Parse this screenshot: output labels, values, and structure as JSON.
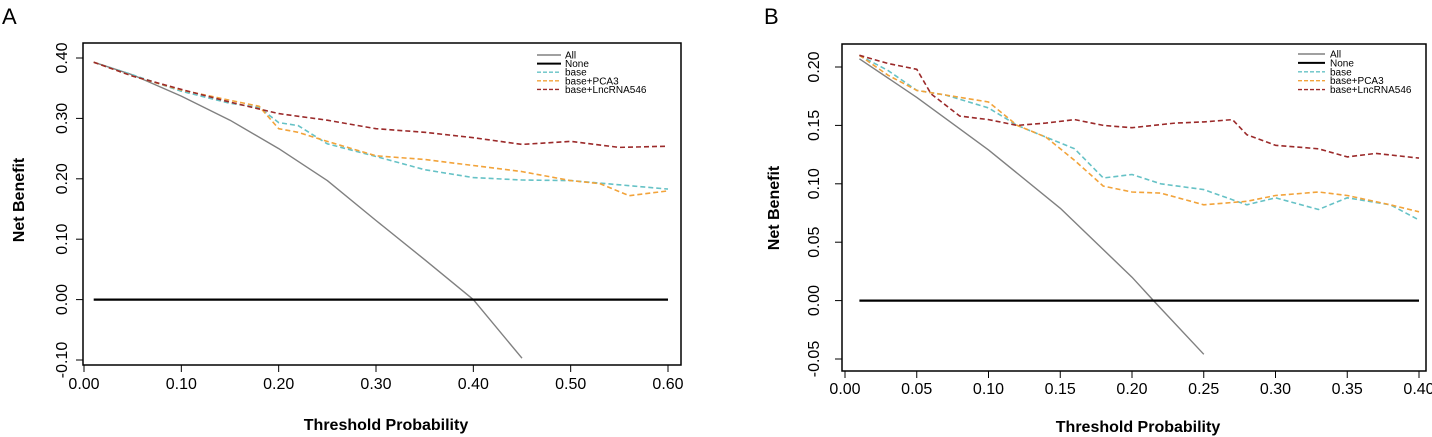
{
  "chart_data": [
    {
      "panel": "A",
      "type": "line",
      "title": "",
      "xlabel": "Threshold Probability",
      "ylabel": "Net Benefit",
      "xlim": [
        0.0,
        0.6
      ],
      "ylim": [
        -0.1,
        0.4
      ],
      "xticks": [
        0.0,
        0.1,
        0.2,
        0.3,
        0.4,
        0.5,
        0.6
      ],
      "xtick_labels": [
        "0.00",
        "0.10",
        "0.20",
        "0.30",
        "0.40",
        "0.50",
        "0.60"
      ],
      "yticks": [
        -0.1,
        0.0,
        0.1,
        0.2,
        0.3,
        0.4
      ],
      "ytick_labels": [
        "-0.10",
        "0.00",
        "0.10",
        "0.20",
        "0.30",
        "0.40"
      ],
      "legend_position": "top-right",
      "series": [
        {
          "name": "All",
          "color": "#808080",
          "dash": "solid",
          "x": [
            0.01,
            0.05,
            0.1,
            0.15,
            0.2,
            0.25,
            0.3,
            0.35,
            0.4,
            0.45
          ],
          "y": [
            0.393,
            0.372,
            0.337,
            0.297,
            0.25,
            0.197,
            0.131,
            0.066,
            0.0,
            -0.097
          ]
        },
        {
          "name": "None",
          "color": "#000000",
          "dash": "solid",
          "x": [
            0.01,
            0.6
          ],
          "y": [
            0.0,
            0.0
          ]
        },
        {
          "name": "base",
          "color": "#66c2c6",
          "dash": "dashed",
          "x": [
            0.01,
            0.05,
            0.1,
            0.15,
            0.18,
            0.2,
            0.22,
            0.25,
            0.3,
            0.35,
            0.4,
            0.45,
            0.5,
            0.55,
            0.6
          ],
          "y": [
            0.393,
            0.372,
            0.345,
            0.325,
            0.318,
            0.293,
            0.288,
            0.258,
            0.237,
            0.215,
            0.202,
            0.198,
            0.197,
            0.19,
            0.183
          ]
        },
        {
          "name": "base+PCA3",
          "color": "#f2a33a",
          "dash": "dashed",
          "x": [
            0.01,
            0.05,
            0.1,
            0.15,
            0.18,
            0.2,
            0.22,
            0.25,
            0.3,
            0.35,
            0.4,
            0.45,
            0.5,
            0.53,
            0.56,
            0.6
          ],
          "y": [
            0.393,
            0.37,
            0.347,
            0.33,
            0.32,
            0.283,
            0.277,
            0.262,
            0.238,
            0.232,
            0.222,
            0.212,
            0.197,
            0.192,
            0.172,
            0.18
          ]
        },
        {
          "name": "base+LncRNA546",
          "color": "#9b2a2a",
          "dash": "dashed",
          "x": [
            0.01,
            0.05,
            0.1,
            0.15,
            0.2,
            0.25,
            0.3,
            0.35,
            0.4,
            0.45,
            0.5,
            0.55,
            0.6
          ],
          "y": [
            0.393,
            0.37,
            0.348,
            0.327,
            0.308,
            0.297,
            0.283,
            0.277,
            0.268,
            0.257,
            0.262,
            0.252,
            0.254
          ]
        }
      ]
    },
    {
      "panel": "B",
      "type": "line",
      "title": "",
      "xlabel": "Threshold Probability",
      "ylabel": "Net Benefit",
      "xlim": [
        0.0,
        0.4
      ],
      "ylim": [
        -0.05,
        0.22
      ],
      "xticks": [
        0.0,
        0.05,
        0.1,
        0.15,
        0.2,
        0.25,
        0.3,
        0.35,
        0.4
      ],
      "xtick_labels": [
        "0.00",
        "0.05",
        "0.10",
        "0.15",
        "0.20",
        "0.25",
        "0.30",
        "0.35",
        "0.40"
      ],
      "yticks": [
        -0.05,
        0.0,
        0.05,
        0.1,
        0.15,
        0.2
      ],
      "ytick_labels": [
        "-0.05",
        "0.00",
        "0.05",
        "0.10",
        "0.15",
        "0.20"
      ],
      "legend_position": "top-right",
      "series": [
        {
          "name": "All",
          "color": "#808080",
          "dash": "solid",
          "x": [
            0.01,
            0.05,
            0.1,
            0.15,
            0.2,
            0.215,
            0.25
          ],
          "y": [
            0.207,
            0.174,
            0.129,
            0.079,
            0.02,
            0.0,
            -0.046
          ]
        },
        {
          "name": "None",
          "color": "#000000",
          "dash": "solid",
          "x": [
            0.01,
            0.4
          ],
          "y": [
            0.0,
            0.0
          ]
        },
        {
          "name": "base",
          "color": "#66c2c6",
          "dash": "dashed",
          "x": [
            0.01,
            0.03,
            0.05,
            0.07,
            0.1,
            0.12,
            0.14,
            0.16,
            0.18,
            0.2,
            0.22,
            0.25,
            0.28,
            0.3,
            0.33,
            0.35,
            0.38,
            0.4
          ],
          "y": [
            0.21,
            0.197,
            0.18,
            0.176,
            0.165,
            0.15,
            0.14,
            0.13,
            0.105,
            0.108,
            0.1,
            0.095,
            0.082,
            0.088,
            0.078,
            0.088,
            0.082,
            0.069
          ]
        },
        {
          "name": "base+PCA3",
          "color": "#f2a33a",
          "dash": "dashed",
          "x": [
            0.01,
            0.03,
            0.05,
            0.07,
            0.1,
            0.12,
            0.14,
            0.16,
            0.18,
            0.2,
            0.22,
            0.25,
            0.28,
            0.3,
            0.33,
            0.35,
            0.38,
            0.4
          ],
          "y": [
            0.21,
            0.193,
            0.18,
            0.176,
            0.17,
            0.15,
            0.14,
            0.12,
            0.098,
            0.093,
            0.092,
            0.082,
            0.085,
            0.09,
            0.093,
            0.09,
            0.082,
            0.076
          ]
        },
        {
          "name": "base+LncRNA546",
          "color": "#9b2a2a",
          "dash": "dashed",
          "x": [
            0.01,
            0.03,
            0.05,
            0.06,
            0.08,
            0.1,
            0.12,
            0.14,
            0.16,
            0.18,
            0.2,
            0.23,
            0.25,
            0.27,
            0.28,
            0.3,
            0.33,
            0.35,
            0.37,
            0.4
          ],
          "y": [
            0.21,
            0.203,
            0.198,
            0.177,
            0.158,
            0.155,
            0.15,
            0.152,
            0.155,
            0.15,
            0.148,
            0.152,
            0.153,
            0.155,
            0.142,
            0.133,
            0.13,
            0.123,
            0.126,
            0.122
          ]
        }
      ]
    }
  ]
}
